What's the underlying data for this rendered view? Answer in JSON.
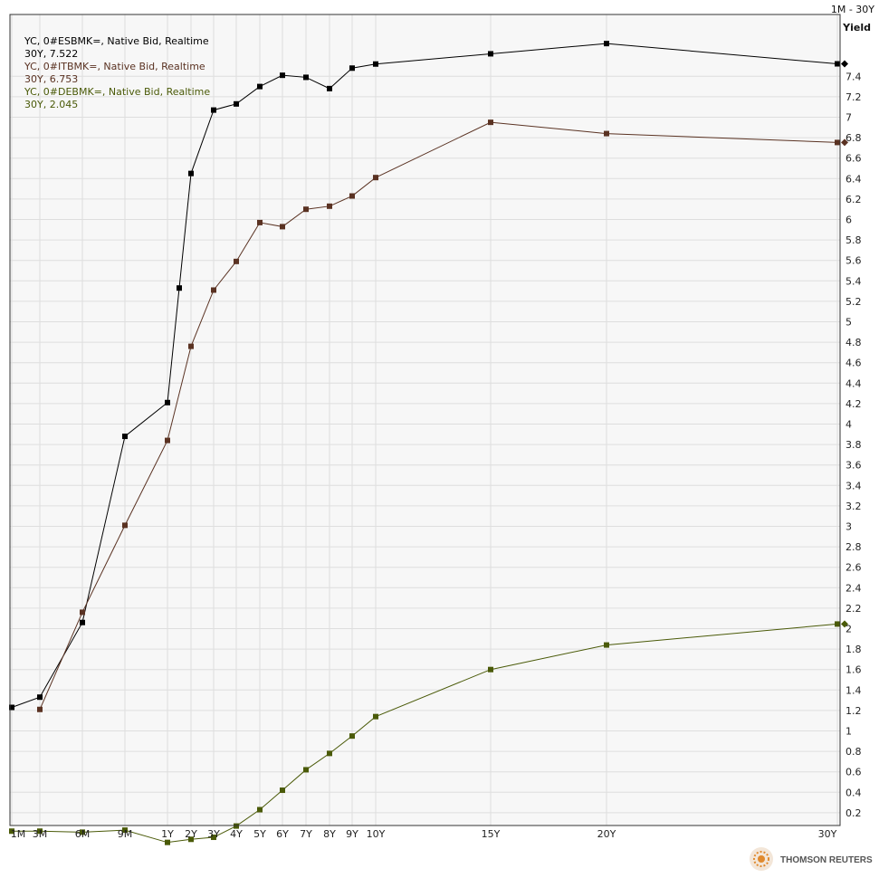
{
  "chart_data": {
    "type": "line",
    "range_label": "1M - 30Y",
    "ylabel": "Yield",
    "xlabel": "",
    "ylim": [
      0,
      8.0
    ],
    "y_ticks": [
      0.2,
      0.4,
      0.6,
      0.8,
      1,
      1.2,
      1.4,
      1.6,
      1.8,
      2,
      2.2,
      2.4,
      2.6,
      2.8,
      3,
      3.2,
      3.4,
      3.6,
      3.8,
      4,
      4.2,
      4.4,
      4.6,
      4.8,
      5,
      5.2,
      5.4,
      5.6,
      5.8,
      6,
      6.2,
      6.4,
      6.6,
      6.8,
      7,
      7.2,
      7.4
    ],
    "categories": [
      "1M",
      "3M",
      "6M",
      "9M",
      "1Y",
      "2Y",
      "3Y",
      "4Y",
      "5Y",
      "6Y",
      "7Y",
      "8Y",
      "9Y",
      "10Y",
      "15Y",
      "20Y",
      "30Y"
    ],
    "series": [
      {
        "name": "YC, 0#ESBMK=, Native Bid, Realtime",
        "last_label": "30Y, 7.522",
        "last_value": 7.522,
        "color": "#000000",
        "points": [
          {
            "x": "1M",
            "y": 1.23
          },
          {
            "x": "3M",
            "y": 1.33
          },
          {
            "x": "6M",
            "y": 2.06
          },
          {
            "x": "9M",
            "y": 3.88
          },
          {
            "x": "1Y",
            "y": 4.21
          },
          {
            "x": "1Y+",
            "y": 5.33
          },
          {
            "x": "2Y",
            "y": 6.45
          },
          {
            "x": "3Y",
            "y": 7.07
          },
          {
            "x": "4Y",
            "y": 7.13
          },
          {
            "x": "5Y",
            "y": 7.3
          },
          {
            "x": "6Y",
            "y": 7.41
          },
          {
            "x": "7Y",
            "y": 7.39
          },
          {
            "x": "8Y",
            "y": 7.28
          },
          {
            "x": "9Y",
            "y": 7.48
          },
          {
            "x": "10Y",
            "y": 7.52
          },
          {
            "x": "15Y",
            "y": 7.62
          },
          {
            "x": "20Y",
            "y": 7.72
          },
          {
            "x": "30Y",
            "y": 7.522
          }
        ]
      },
      {
        "name": "YC, 0#ITBMK=, Native Bid, Realtime",
        "last_label": "30Y, 6.753",
        "last_value": 6.753,
        "color": "#5a3222",
        "points": [
          {
            "x": "3M",
            "y": 1.21
          },
          {
            "x": "6M",
            "y": 2.16
          },
          {
            "x": "9M",
            "y": 3.01
          },
          {
            "x": "1Y",
            "y": 3.84
          },
          {
            "x": "2Y",
            "y": 4.76
          },
          {
            "x": "3Y",
            "y": 5.31
          },
          {
            "x": "4Y",
            "y": 5.59
          },
          {
            "x": "5Y",
            "y": 5.97
          },
          {
            "x": "6Y",
            "y": 5.93
          },
          {
            "x": "7Y",
            "y": 6.1
          },
          {
            "x": "8Y",
            "y": 6.13
          },
          {
            "x": "9Y",
            "y": 6.23
          },
          {
            "x": "10Y",
            "y": 6.41
          },
          {
            "x": "15Y",
            "y": 6.95
          },
          {
            "x": "20Y",
            "y": 6.84
          },
          {
            "x": "30Y",
            "y": 6.753
          }
        ]
      },
      {
        "name": "YC, 0#DEBMK=, Native Bid, Realtime",
        "last_label": "30Y, 2.045",
        "last_value": 2.045,
        "color": "#4a5a08",
        "points": [
          {
            "x": "1M",
            "y": 0.02
          },
          {
            "x": "3M",
            "y": 0.02
          },
          {
            "x": "6M",
            "y": 0.01
          },
          {
            "x": "9M",
            "y": 0.03
          },
          {
            "x": "1Y",
            "y": -0.09
          },
          {
            "x": "2Y",
            "y": -0.06
          },
          {
            "x": "3Y",
            "y": -0.04
          },
          {
            "x": "4Y",
            "y": 0.07
          },
          {
            "x": "5Y",
            "y": 0.23
          },
          {
            "x": "6Y",
            "y": 0.42
          },
          {
            "x": "7Y",
            "y": 0.62
          },
          {
            "x": "8Y",
            "y": 0.78
          },
          {
            "x": "9Y",
            "y": 0.95
          },
          {
            "x": "10Y",
            "y": 1.14
          },
          {
            "x": "15Y",
            "y": 1.6
          },
          {
            "x": "20Y",
            "y": 1.84
          },
          {
            "x": "30Y",
            "y": 2.045
          }
        ]
      }
    ],
    "legend_position": "top-left",
    "grid": true
  },
  "branding": {
    "logo_text": "THOMSON REUTERS",
    "logo_icon": "thomson-reuters-logo-icon"
  }
}
